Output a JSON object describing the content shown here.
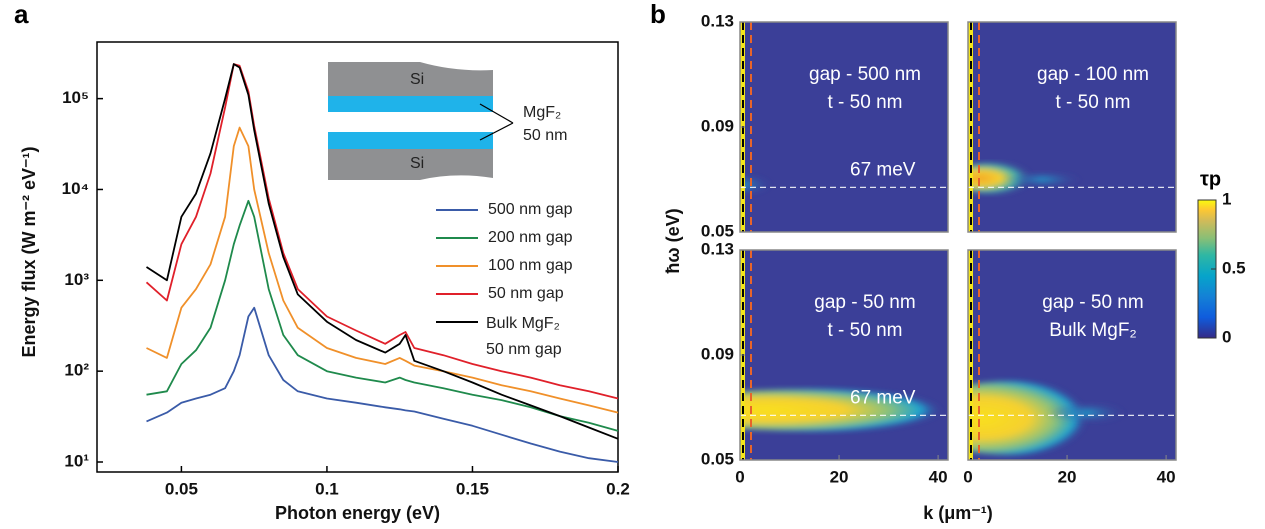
{
  "chart_data": [
    {
      "type": "line",
      "panel_label": "a",
      "x_label": "Photon energy (eV)",
      "y_label": "Energy flux (W m⁻² eV⁻¹)",
      "log_y": true,
      "xlim": [
        0.021,
        0.2
      ],
      "ylim": [
        10,
        420000
      ],
      "xticks": [
        0.05,
        0.1,
        0.15,
        0.2
      ],
      "yticks": [
        {
          "value": 10,
          "label": "10¹"
        },
        {
          "value": 100,
          "label": "10²"
        },
        {
          "value": 1000,
          "label": "10³"
        },
        {
          "value": 10000,
          "label": "10⁴"
        },
        {
          "value": 100000,
          "label": "10⁵"
        }
      ],
      "x": [
        0.038,
        0.045,
        0.05,
        0.055,
        0.06,
        0.065,
        0.068,
        0.07,
        0.073,
        0.075,
        0.08,
        0.085,
        0.09,
        0.1,
        0.11,
        0.12,
        0.125,
        0.127,
        0.13,
        0.14,
        0.15,
        0.16,
        0.17,
        0.18,
        0.19,
        0.2
      ],
      "series": [
        {
          "name": "500 nm gap",
          "color": "#3a5ba8",
          "values": [
            28,
            35,
            45,
            50,
            55,
            65,
            100,
            150,
            400,
            500,
            150,
            80,
            60,
            50,
            45,
            40,
            38,
            37,
            36,
            30,
            25,
            20,
            16,
            13,
            11,
            10
          ]
        },
        {
          "name": "200 nm gap",
          "color": "#1f8a4c",
          "values": [
            55,
            60,
            120,
            170,
            300,
            1000,
            2500,
            4000,
            7500,
            5000,
            800,
            250,
            150,
            100,
            85,
            75,
            85,
            80,
            75,
            65,
            55,
            48,
            40,
            32,
            27,
            22
          ]
        },
        {
          "name": "100 nm gap",
          "color": "#f0902a",
          "values": [
            180,
            140,
            500,
            800,
            1500,
            5000,
            30000,
            48000,
            30000,
            10000,
            2000,
            600,
            300,
            180,
            140,
            120,
            140,
            130,
            115,
            100,
            85,
            70,
            60,
            50,
            42,
            35
          ]
        },
        {
          "name": "50 nm gap",
          "color": "#e0202a",
          "values": [
            950,
            600,
            2500,
            5000,
            15000,
            80000,
            240000,
            230000,
            120000,
            50000,
            8000,
            2000,
            800,
            400,
            280,
            200,
            250,
            270,
            180,
            150,
            120,
            100,
            85,
            70,
            60,
            50
          ]
        },
        {
          "name": "Bulk MgF₂ 50 nm gap",
          "color": "#000000",
          "values": [
            1400,
            1000,
            5000,
            9000,
            25000,
            100000,
            240000,
            220000,
            110000,
            45000,
            7000,
            1800,
            700,
            350,
            220,
            160,
            200,
            250,
            130,
            100,
            75,
            55,
            42,
            32,
            24,
            18
          ]
        }
      ],
      "inset": {
        "layer_top": "Si",
        "layer_bottom": "Si",
        "spacer": "MgF₂",
        "spacer_thickness": "50 nm"
      }
    },
    {
      "type": "heatmap",
      "panel_label": "b",
      "x_label": "k (μm⁻¹)",
      "y_label": "ħω (eV)",
      "xlim": [
        0,
        42
      ],
      "ylim": [
        0.05,
        0.13
      ],
      "xticks": [
        0,
        20,
        40
      ],
      "yticks": [
        0.05,
        0.09,
        0.13
      ],
      "reference_line": 0.067,
      "panels": [
        {
          "lines": [
            "gap - 500 nm",
            "t - 50 nm"
          ],
          "annotation": "67 meV"
        },
        {
          "lines": [
            "gap - 100 nm",
            "t - 50 nm"
          ]
        },
        {
          "lines": [
            "gap - 50 nm",
            "t - 50 nm"
          ],
          "annotation": "67 meV"
        },
        {
          "lines": [
            "gap - 50 nm",
            "Bulk MgF₂"
          ]
        }
      ],
      "colorbar": {
        "title": "τp",
        "ticks": [
          0,
          0.5,
          1
        ]
      }
    }
  ]
}
